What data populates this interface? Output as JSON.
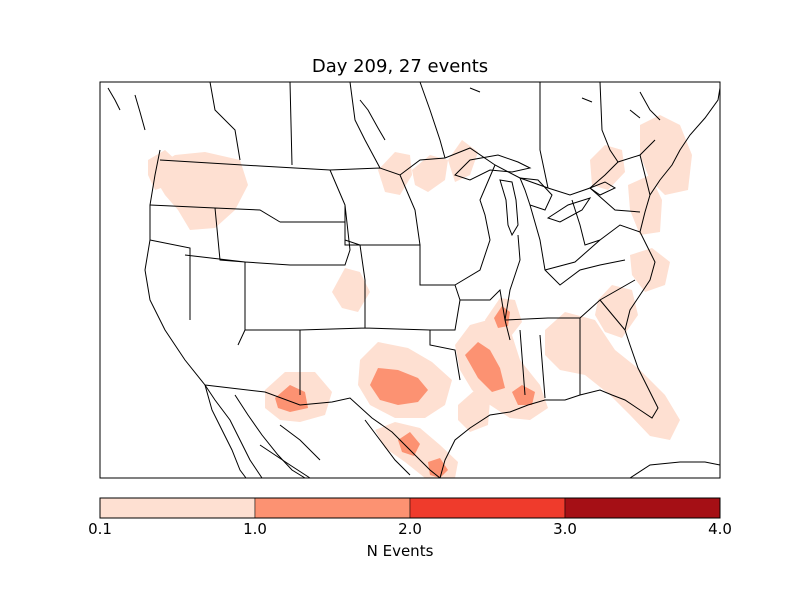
{
  "title": "Day 209, 27 events",
  "colorbar": {
    "label": "N Events",
    "ticks": [
      "0.1",
      "1.0",
      "2.0",
      "3.0",
      "4.0"
    ],
    "bins": [
      {
        "from": 0.1,
        "to": 1.0,
        "color": "#fee0d2"
      },
      {
        "from": 1.0,
        "to": 2.0,
        "color": "#fc9272"
      },
      {
        "from": 2.0,
        "to": 3.0,
        "color": "#ef3b2c"
      },
      {
        "from": 3.0,
        "to": 4.0,
        "color": "#a50f15"
      }
    ]
  },
  "colors": {
    "level_low": "#fee0d2",
    "level_mid": "#fc9272",
    "level_high": "#ef3b2c",
    "level_max": "#a50f15",
    "outline": "#000000"
  }
}
